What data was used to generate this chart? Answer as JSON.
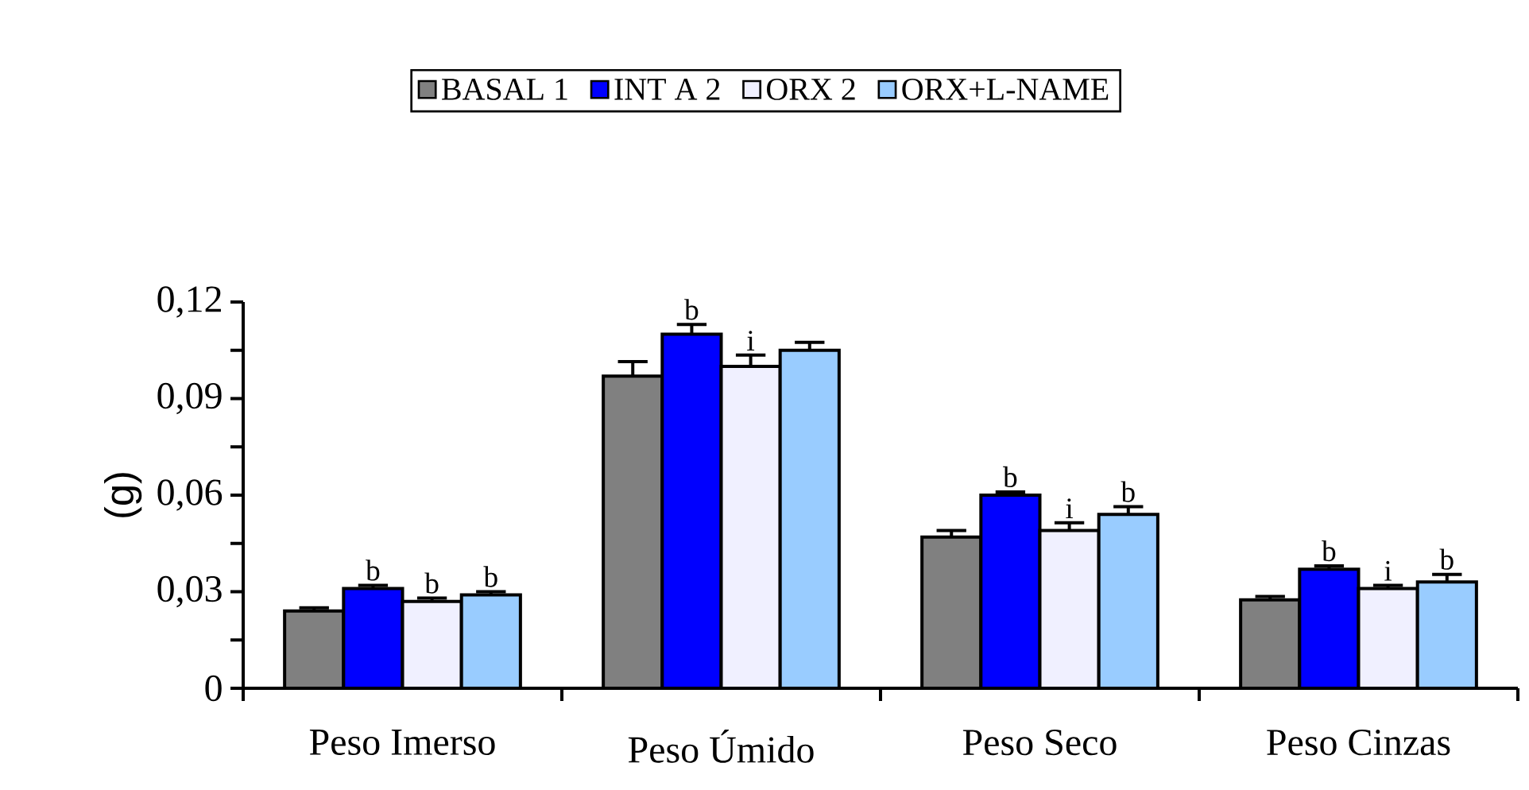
{
  "chart_data": {
    "type": "bar",
    "ylabel": "(g)",
    "categories": [
      "Peso Imerso",
      "Peso Úmido",
      "Peso Seco",
      "Peso Cinzas"
    ],
    "series": [
      {
        "name": "BASAL 1",
        "color": "#808080",
        "values": [
          0.024,
          0.097,
          0.047,
          0.0275
        ],
        "errors": [
          0.001,
          0.0045,
          0.002,
          0.001
        ]
      },
      {
        "name": "INT A 2",
        "color": "#0000ff",
        "values": [
          0.031,
          0.11,
          0.06,
          0.037
        ],
        "errors": [
          0.001,
          0.003,
          0.001,
          0.001
        ],
        "value_labels": [
          "b",
          "b",
          "b",
          "b"
        ]
      },
      {
        "name": "ORX 2",
        "color": "#f0f0ff",
        "values": [
          0.027,
          0.1,
          0.049,
          0.031
        ],
        "errors": [
          0.001,
          0.0035,
          0.0024,
          0.001
        ],
        "value_labels": [
          "b",
          "i",
          "i",
          "i"
        ]
      },
      {
        "name": "ORX+L-NAME",
        "color": "#99ccff",
        "values": [
          0.029,
          0.105,
          0.054,
          0.033
        ],
        "errors": [
          0.001,
          0.0025,
          0.0024,
          0.0024
        ],
        "value_labels": [
          "b",
          null,
          "b",
          "b"
        ]
      }
    ],
    "ylim": [
      0,
      0.12
    ],
    "yticks": [
      0,
      {
        "value": 0.015,
        "label": null
      },
      {
        "value": 0.03,
        "label": "0,03"
      },
      {
        "value": 0.045,
        "label": null
      },
      {
        "value": 0.06,
        "label": "0,06"
      },
      {
        "value": 0.075,
        "label": null
      },
      {
        "value": 0.09,
        "label": "0,09"
      },
      {
        "value": 0.105,
        "label": null
      },
      {
        "value": 0.12,
        "label": "0,12"
      }
    ],
    "legend": "top",
    "grid": false
  }
}
